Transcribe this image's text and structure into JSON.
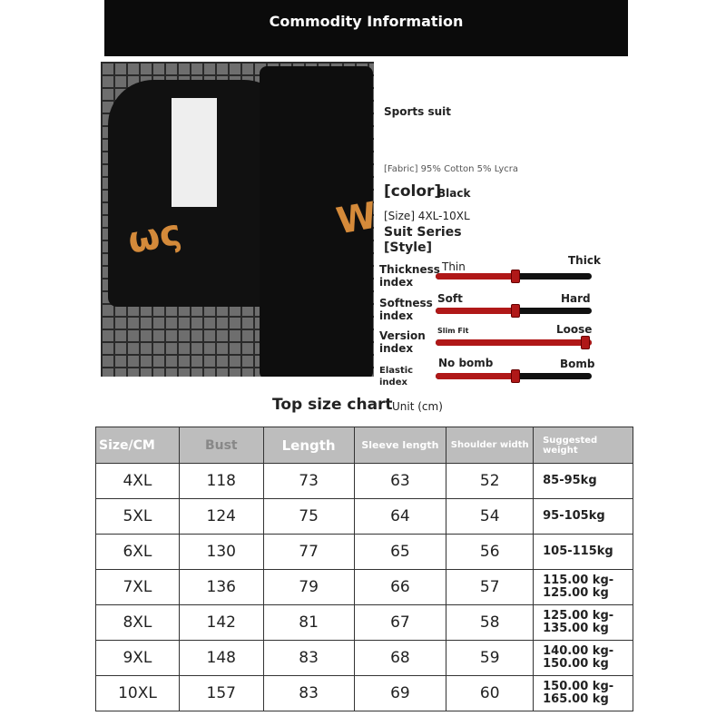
{
  "header": {
    "title": "Commodity Information"
  },
  "product": {
    "name": "Sports suit",
    "fabric": "[Fabric] 95% Cotton 5% Lycra",
    "color_label": "[color]",
    "color_value": "Black",
    "size": "[Size] 4XL-10XL",
    "series": "Suit Series",
    "style": "[Style]"
  },
  "indices": [
    {
      "label": "Thickness index",
      "left": "Thin",
      "right": "Thick",
      "value_percent": 50
    },
    {
      "label": "Softness index",
      "left": "Soft",
      "right": "Hard",
      "value_percent": 50
    },
    {
      "label": "Version index",
      "left": "Slim Fit",
      "right": "Loose",
      "value_percent": 100
    },
    {
      "label": "Elastic index",
      "left": "No bomb",
      "right": "Bomb",
      "value_percent": 50
    }
  ],
  "size_chart": {
    "title": "Top size chart",
    "unit": "Unit (cm)",
    "headers": [
      "Size/CM",
      "Bust",
      "Length",
      "Sleeve length",
      "Shoulder width",
      "Suggested weight"
    ],
    "rows": [
      [
        "4XL",
        "118",
        "73",
        "63",
        "52",
        "85-95kg"
      ],
      [
        "5XL",
        "124",
        "75",
        "64",
        "54",
        "95-105kg"
      ],
      [
        "6XL",
        "130",
        "77",
        "65",
        "56",
        "105-115kg"
      ],
      [
        "7XL",
        "136",
        "79",
        "66",
        "57",
        "115.00 kg-125.00 kg"
      ],
      [
        "8XL",
        "142",
        "81",
        "67",
        "58",
        "125.00 kg-135.00 kg"
      ],
      [
        "9XL",
        "148",
        "83",
        "68",
        "59",
        "140.00 kg-150.00 kg"
      ],
      [
        "10XL",
        "157",
        "83",
        "69",
        "60",
        "150.00 kg-165.00 kg"
      ]
    ]
  },
  "colors": {
    "slider_fill": "#b01818",
    "header_bg": "#0b0b0b",
    "table_header_bg": "#bdbdbd"
  }
}
